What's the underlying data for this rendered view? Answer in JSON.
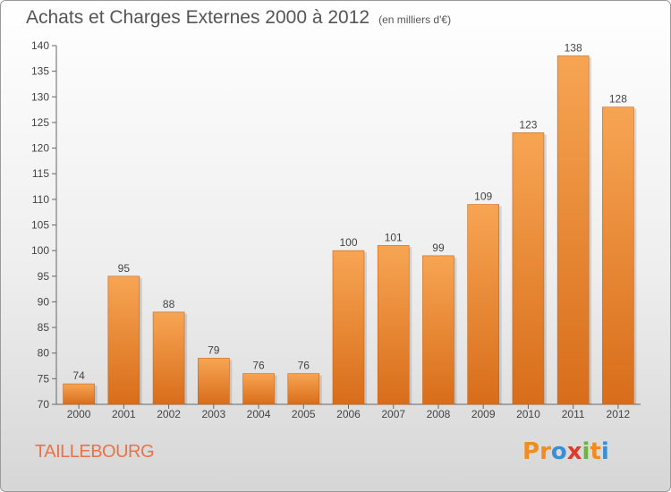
{
  "chart_data": {
    "type": "bar",
    "title": "Achats et Charges Externes 2000 à 2012",
    "subtitle": "(en milliers d'€)",
    "categories": [
      "2000",
      "2001",
      "2002",
      "2003",
      "2004",
      "2005",
      "2006",
      "2007",
      "2008",
      "2009",
      "2010",
      "2011",
      "2012"
    ],
    "values": [
      74,
      95,
      88,
      79,
      76,
      76,
      100,
      101,
      99,
      109,
      123,
      138,
      128
    ],
    "ylim": [
      70,
      140
    ],
    "yticks": [
      70,
      75,
      80,
      85,
      90,
      95,
      100,
      105,
      110,
      115,
      120,
      125,
      130,
      135,
      140
    ],
    "xlabel": "",
    "ylabel": "",
    "grid": false,
    "colors": {
      "bar_light": "#f7a553",
      "bar_dark": "#d86d1a"
    }
  },
  "footer": {
    "commune": "TAILLEBOURG",
    "brand": "Proxiti",
    "brand_letters": [
      "P",
      "r",
      "o",
      "x",
      "i",
      "t",
      "i"
    ],
    "brand_colors": [
      "#f28c1e",
      "#f28c1e",
      "#3a8fd4",
      "#e03a2f",
      "#6cb33f",
      "#f28c1e",
      "#3a8fd4"
    ]
  }
}
